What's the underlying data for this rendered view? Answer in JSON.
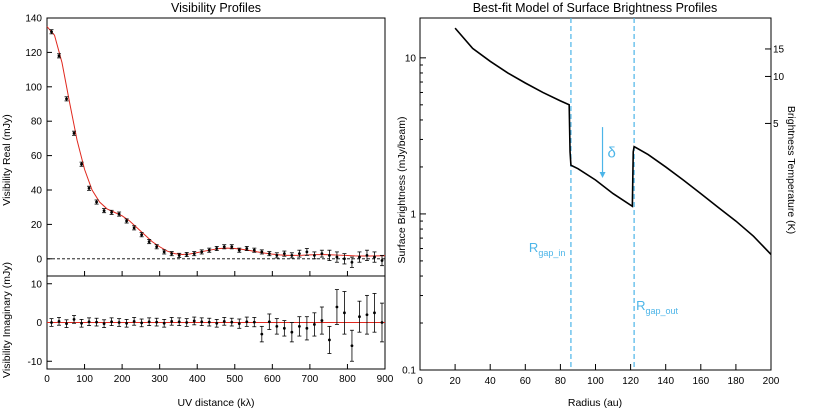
{
  "chart_data": [
    {
      "type": "scatter",
      "title": "Visibility Profiles",
      "panel": "real",
      "xlabel": "UV distance (kλ)",
      "ylabel": "Visibility Real (mJy)",
      "xlim": [
        0,
        900
      ],
      "ylim": [
        -10,
        140
      ],
      "xticks": [
        0,
        100,
        200,
        300,
        400,
        500,
        600,
        700,
        800,
        900
      ],
      "yticks": [
        0,
        20,
        40,
        60,
        80,
        100,
        120,
        140
      ],
      "zero_line": 0,
      "series": [
        {
          "name": "data",
          "color": "#000000",
          "points": [
            [
              12,
              132,
              1.2
            ],
            [
              32,
              118,
              1.2
            ],
            [
              52,
              93,
              1.2
            ],
            [
              72,
              73,
              1.2
            ],
            [
              92,
              55,
              1.2
            ],
            [
              112,
              41,
              1.2
            ],
            [
              132,
              33,
              1.2
            ],
            [
              152,
              28,
              1.2
            ],
            [
              172,
              27,
              1.2
            ],
            [
              192,
              26,
              1.2
            ],
            [
              212,
              22,
              1.2
            ],
            [
              232,
              18,
              1.2
            ],
            [
              252,
              14,
              1.2
            ],
            [
              272,
              10,
              1.2
            ],
            [
              292,
              7,
              1.2
            ],
            [
              312,
              4,
              1.2
            ],
            [
              332,
              3,
              1.2
            ],
            [
              352,
              2,
              1.2
            ],
            [
              372,
              2.5,
              1.2
            ],
            [
              392,
              3,
              1.2
            ],
            [
              412,
              4,
              1.2
            ],
            [
              432,
              5,
              1.2
            ],
            [
              452,
              6,
              1.2
            ],
            [
              472,
              7,
              1.2
            ],
            [
              492,
              7,
              1.2
            ],
            [
              512,
              5,
              1.2
            ],
            [
              532,
              6,
              1.2
            ],
            [
              552,
              5,
              1.2
            ],
            [
              572,
              4,
              1.2
            ],
            [
              592,
              3,
              1.2
            ],
            [
              612,
              2,
              1.5
            ],
            [
              632,
              3,
              1.5
            ],
            [
              652,
              2,
              1.5
            ],
            [
              672,
              3,
              2
            ],
            [
              692,
              4,
              2
            ],
            [
              712,
              2,
              2
            ],
            [
              732,
              3,
              2
            ],
            [
              752,
              2,
              3
            ],
            [
              772,
              1,
              3
            ],
            [
              792,
              0,
              3
            ],
            [
              812,
              -2,
              3
            ],
            [
              832,
              1,
              3
            ],
            [
              852,
              2,
              3
            ],
            [
              872,
              1,
              3
            ],
            [
              892,
              -1,
              3
            ]
          ]
        },
        {
          "name": "model",
          "color": "#e0281e",
          "x": [
            0,
            20,
            40,
            60,
            80,
            100,
            120,
            140,
            160,
            180,
            200,
            220,
            240,
            260,
            280,
            300,
            320,
            340,
            360,
            380,
            400,
            420,
            440,
            460,
            480,
            500,
            520,
            540,
            560,
            580,
            600,
            620,
            640,
            660,
            680,
            700,
            720,
            740,
            760,
            780,
            800,
            820,
            840,
            860,
            880,
            900
          ],
          "y": [
            135,
            130,
            114,
            91,
            69,
            52,
            40,
            33,
            29,
            27,
            25,
            22,
            18,
            14,
            10,
            7,
            4.5,
            3,
            2.5,
            2.8,
            3.6,
            4.5,
            5.3,
            6,
            6.2,
            6,
            5.5,
            4.8,
            4,
            3.3,
            2.7,
            2.3,
            2,
            2,
            2.1,
            2.3,
            2.4,
            2.4,
            2.3,
            2.1,
            1.9,
            1.7,
            1.6,
            1.6,
            1.7,
            1.8
          ]
        }
      ]
    },
    {
      "type": "scatter",
      "panel": "imaginary",
      "xlabel": "UV distance (kλ)",
      "ylabel": "Visibility Imaginary (mJy)",
      "xlim": [
        0,
        900
      ],
      "ylim": [
        -12,
        12
      ],
      "xticks": [
        0,
        100,
        200,
        300,
        400,
        500,
        600,
        700,
        800,
        900
      ],
      "yticks": [
        -10,
        0,
        10
      ],
      "series": [
        {
          "name": "data",
          "color": "#000000",
          "points": [
            [
              12,
              0,
              1
            ],
            [
              32,
              0.3,
              1
            ],
            [
              52,
              -0.3,
              1
            ],
            [
              72,
              0.8,
              1
            ],
            [
              92,
              -0.2,
              1
            ],
            [
              112,
              0.2,
              1
            ],
            [
              132,
              0.1,
              1
            ],
            [
              152,
              -0.3,
              1
            ],
            [
              172,
              0.2,
              1
            ],
            [
              192,
              0,
              1
            ],
            [
              212,
              -0.2,
              1
            ],
            [
              232,
              0.3,
              1
            ],
            [
              252,
              -0.1,
              1
            ],
            [
              272,
              0.2,
              1
            ],
            [
              292,
              0.1,
              1
            ],
            [
              312,
              -0.2,
              1
            ],
            [
              332,
              0.3,
              1
            ],
            [
              352,
              0.2,
              1
            ],
            [
              372,
              0,
              1
            ],
            [
              392,
              0.4,
              1
            ],
            [
              412,
              0.2,
              1
            ],
            [
              432,
              0.1,
              1
            ],
            [
              452,
              -0.2,
              1
            ],
            [
              472,
              0.3,
              1
            ],
            [
              492,
              0.1,
              1
            ],
            [
              512,
              -0.3,
              1.2
            ],
            [
              532,
              0.2,
              1.2
            ],
            [
              552,
              0.1,
              1.2
            ],
            [
              572,
              -3,
              2
            ],
            [
              592,
              0.2,
              2
            ],
            [
              612,
              -1,
              2
            ],
            [
              632,
              -1.5,
              2
            ],
            [
              652,
              -2.5,
              2.5
            ],
            [
              672,
              -1,
              2.5
            ],
            [
              692,
              -1.5,
              3
            ],
            [
              712,
              -0.5,
              3
            ],
            [
              732,
              0.5,
              3.5
            ],
            [
              752,
              -4.5,
              3.5
            ],
            [
              772,
              4,
              4.5
            ],
            [
              792,
              2.5,
              5.5
            ],
            [
              812,
              -6,
              4
            ],
            [
              832,
              1.5,
              4
            ],
            [
              852,
              2,
              5
            ],
            [
              872,
              2.5,
              5
            ],
            [
              892,
              0,
              5
            ]
          ]
        },
        {
          "name": "model",
          "color": "#e0281e",
          "x": [
            0,
            900
          ],
          "y": [
            0,
            0
          ]
        }
      ]
    },
    {
      "type": "line",
      "title": "Best-fit Model of Surface Brightness Profiles",
      "xlabel": "Radius (au)",
      "ylabel": "Surface Brightness (mJy/beam)",
      "ylabel_right": "Brightness Temperature (K)",
      "xlim": [
        0,
        200
      ],
      "ylim": [
        0.1,
        18
      ],
      "yscale": "log",
      "xticks": [
        0,
        20,
        40,
        60,
        80,
        100,
        120,
        140,
        160,
        180,
        200
      ],
      "yticks": [
        0.1,
        1,
        10
      ],
      "ytick_labels": [
        "0.1",
        "1",
        "10"
      ],
      "yticks_right": [
        5,
        10,
        15
      ],
      "series": [
        {
          "name": "model",
          "color": "#000000",
          "x": [
            20,
            30,
            40,
            50,
            60,
            70,
            80,
            85,
            85.5,
            86,
            90,
            100,
            110,
            121,
            121.5,
            122,
            130,
            140,
            150,
            160,
            170,
            180,
            190,
            200
          ],
          "y": [
            15.5,
            11.5,
            9.5,
            8,
            6.9,
            6,
            5.3,
            5.0,
            2.5,
            2.05,
            1.95,
            1.65,
            1.35,
            1.12,
            2.5,
            2.7,
            2.4,
            2.0,
            1.65,
            1.35,
            1.1,
            0.9,
            0.72,
            0.55
          ]
        }
      ],
      "annotations": [
        {
          "label_main": "R",
          "label_sub": "gap_in",
          "x": 86,
          "color": "#4cb5e8"
        },
        {
          "label_main": "R",
          "label_sub": "gap_out",
          "x": 122,
          "color": "#4cb5e8"
        },
        {
          "label": "δ",
          "arrow_x": 104,
          "arrow_from_y": 3.6,
          "arrow_to_y": 1.7,
          "color": "#4cb5e8"
        }
      ]
    }
  ]
}
